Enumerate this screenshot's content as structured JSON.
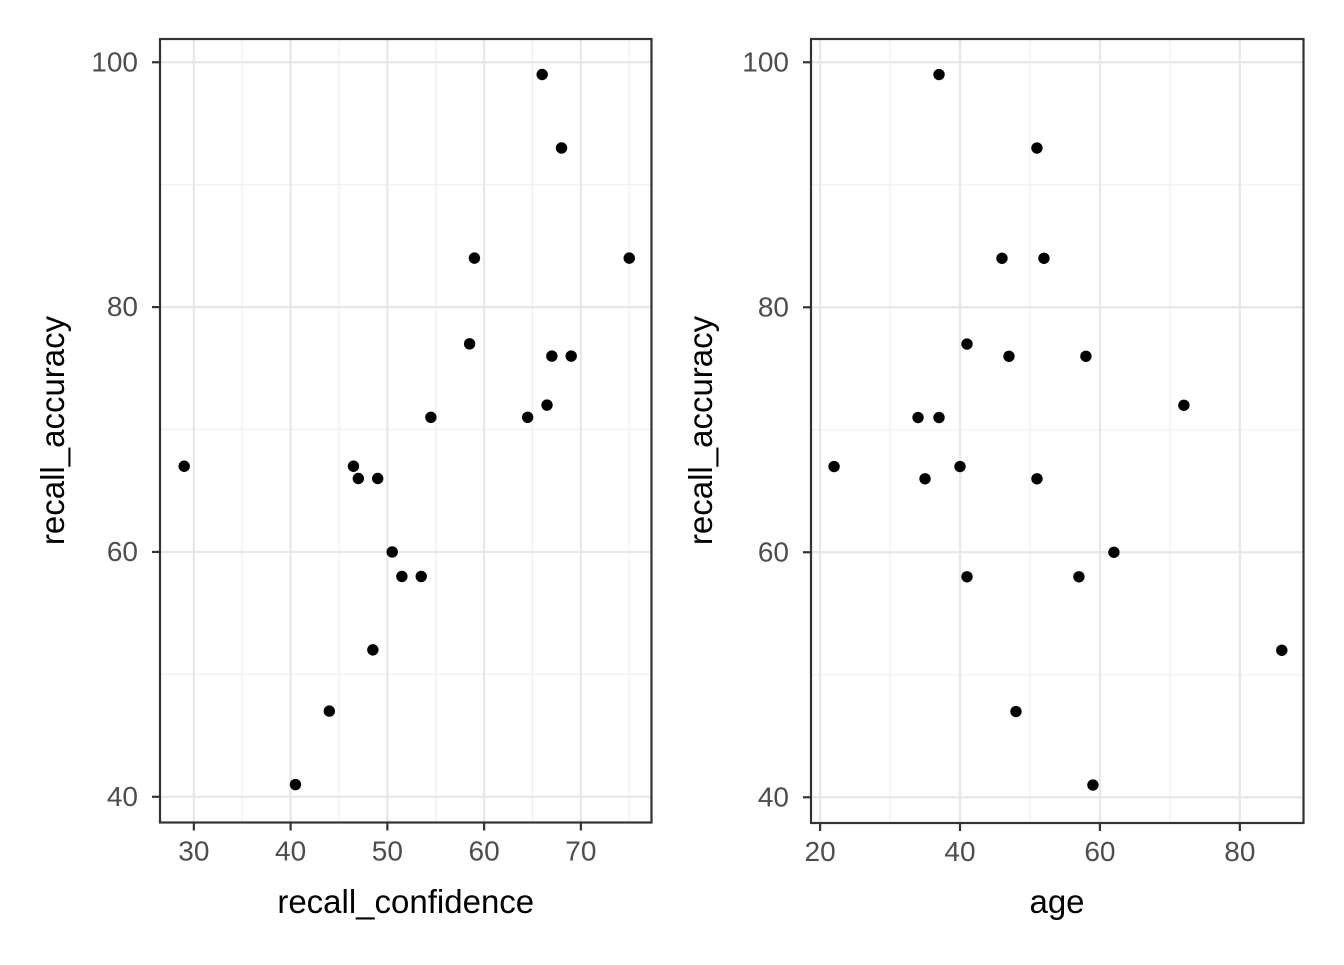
{
  "figure": {
    "background_color": "#ffffff",
    "panel_background_color": "#ffffff",
    "panel_border_color": "#333333",
    "grid_major_color": "#e7e7e7",
    "grid_minor_color": "#f0f0f0",
    "tick_mark_color": "#333333",
    "tick_label_color": "#4d4d4d",
    "axis_title_color": "#000000",
    "point_color": "#000000"
  },
  "chart_data": [
    {
      "type": "scatter",
      "title": "",
      "xlabel": "recall_confidence",
      "ylabel": "recall_accuracy",
      "xlim": [
        26.5,
        77.3
      ],
      "ylim": [
        37.9,
        101.9
      ],
      "x_ticks": [
        30,
        40,
        50,
        60,
        70
      ],
      "x_minor_ticks": [
        35,
        45,
        55,
        65,
        75
      ],
      "y_ticks": [
        40,
        60,
        80,
        100
      ],
      "y_minor_ticks": [
        50,
        70,
        90
      ],
      "grid": true,
      "legend": "none",
      "points": [
        [
          29,
          67
        ],
        [
          40.5,
          41
        ],
        [
          44,
          47
        ],
        [
          46.5,
          67
        ],
        [
          47,
          66
        ],
        [
          48.5,
          52
        ],
        [
          49,
          66
        ],
        [
          50.5,
          60
        ],
        [
          51.5,
          58
        ],
        [
          53.5,
          58
        ],
        [
          54.5,
          71
        ],
        [
          58.5,
          77
        ],
        [
          59,
          84
        ],
        [
          64.5,
          71
        ],
        [
          66,
          99
        ],
        [
          66.5,
          72
        ],
        [
          67,
          76
        ],
        [
          68,
          93
        ],
        [
          69,
          76
        ],
        [
          75,
          84
        ]
      ]
    },
    {
      "type": "scatter",
      "title": "",
      "xlabel": "age",
      "ylabel": "recall_accuracy",
      "xlim": [
        18.7,
        89.1
      ],
      "ylim": [
        37.9,
        101.9
      ],
      "x_ticks": [
        20,
        40,
        60,
        80
      ],
      "x_minor_ticks": [
        30,
        50,
        70
      ],
      "y_ticks": [
        40,
        60,
        80,
        100
      ],
      "y_minor_ticks": [
        50,
        70,
        90
      ],
      "grid": true,
      "legend": "none",
      "points": [
        [
          22,
          67
        ],
        [
          34,
          71
        ],
        [
          35,
          66
        ],
        [
          37,
          71
        ],
        [
          37,
          99
        ],
        [
          40,
          67
        ],
        [
          41,
          77
        ],
        [
          41,
          58
        ],
        [
          46,
          84
        ],
        [
          47,
          76
        ],
        [
          48,
          47
        ],
        [
          51,
          93
        ],
        [
          51,
          66
        ],
        [
          52,
          84
        ],
        [
          57,
          58
        ],
        [
          58,
          76
        ],
        [
          59,
          41
        ],
        [
          62,
          60
        ],
        [
          72,
          72
        ],
        [
          86,
          52
        ]
      ]
    }
  ]
}
